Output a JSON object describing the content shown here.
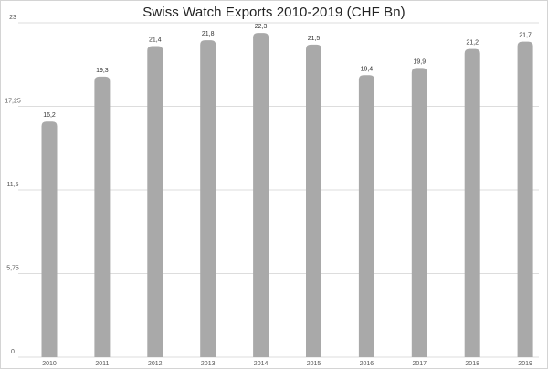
{
  "chart_data": {
    "type": "bar",
    "title": "Swiss Watch Exports 2010-2019 (CHF Bn)",
    "xlabel": "",
    "ylabel": "",
    "categories": [
      "2010",
      "2011",
      "2012",
      "2013",
      "2014",
      "2015",
      "2016",
      "2017",
      "2018",
      "2019"
    ],
    "values": [
      16.2,
      19.3,
      21.4,
      21.8,
      22.3,
      21.5,
      19.4,
      19.9,
      21.2,
      21.7
    ],
    "value_labels": [
      "16,2",
      "19,3",
      "21,4",
      "21,8",
      "22,3",
      "21,5",
      "19,4",
      "19,9",
      "21,2",
      "21,7"
    ],
    "ylim": [
      0,
      23
    ],
    "y_ticks": [
      0,
      5.75,
      11.5,
      17.25,
      23
    ],
    "y_tick_labels": [
      "0",
      "5,75",
      "11,5",
      "17,25",
      "23"
    ],
    "grid": true,
    "legend": "none",
    "colors": {
      "bar": "#a9a9a9",
      "grid": "#dddddd"
    }
  }
}
